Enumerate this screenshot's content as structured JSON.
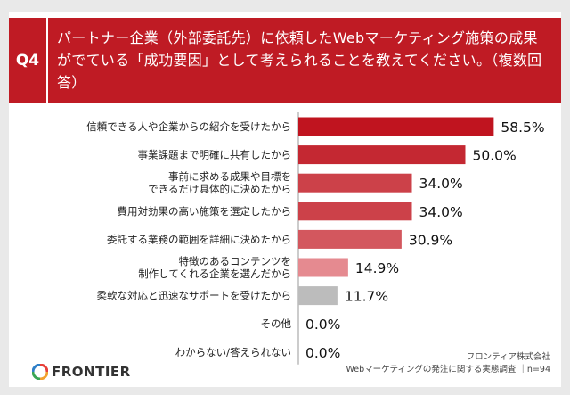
{
  "header": {
    "tag": "Q4",
    "question": "パートナー企業（外部委託先）に依頼したWebマーケティング施策の成果がでている「成功要因」として考えられることを教えてください。（複数回答）"
  },
  "logo": {
    "text": "FRONTIER"
  },
  "source": {
    "company": "フロンティア株式会社",
    "survey": "Webマーケティングの発注に関する実態調査 ｜n=94"
  },
  "chart_data": {
    "type": "bar",
    "orientation": "horizontal",
    "unit": "%",
    "categories": [
      [
        "信頼できる人や企業からの紹介を受けたから"
      ],
      [
        "事業課題まで明確に共有したから"
      ],
      [
        "事前に求める成果や目標を",
        "できるだけ具体的に決めたから"
      ],
      [
        "費用対効果の高い施策を選定したから"
      ],
      [
        "委託する業務の範囲を詳細に決めたから"
      ],
      [
        "特徴のあるコンテンツを",
        "制作してくれる企業を選んだから"
      ],
      [
        "柔軟な対応と迅速なサポートを受けたから"
      ],
      [
        "その他"
      ],
      [
        "わからない/答えられない"
      ]
    ],
    "values": [
      58.5,
      50.0,
      34.0,
      34.0,
      30.9,
      14.9,
      11.7,
      0.0,
      0.0
    ],
    "value_labels": [
      "58.5%",
      "50.0%",
      "34.0%",
      "34.0%",
      "30.9%",
      "14.9%",
      "11.7%",
      "0.0%",
      "0.0%"
    ],
    "bar_colors": [
      "#c0141f",
      "#c42832",
      "#cc4149",
      "#cc4149",
      "#d3575e",
      "#e58a90",
      "#bcbcbc",
      "#bcbcbc",
      "#bcbcbc"
    ]
  },
  "colors": {
    "accent": "#bf1b24",
    "background": "#e9e9e9"
  }
}
